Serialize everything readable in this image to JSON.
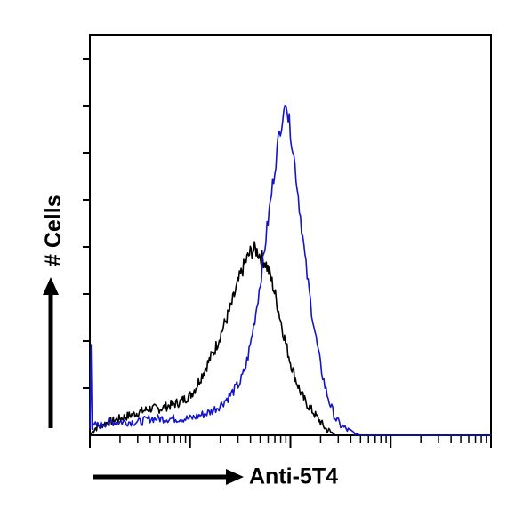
{
  "chart_data": {
    "type": "line",
    "title": "",
    "xlabel": "Anti-5T4",
    "ylabel": "# Cells",
    "x_scale": "log",
    "x_decades": 4,
    "x_range": [
      0,
      4
    ],
    "y_range": [
      0,
      1
    ],
    "grid": false,
    "legend": "none",
    "series": [
      {
        "color": "#000000",
        "x": [
          0.0,
          0.05,
          0.1,
          0.2,
          0.3,
          0.4,
          0.5,
          0.6,
          0.7,
          0.8,
          0.9,
          1.0,
          1.05,
          1.1,
          1.15,
          1.2,
          1.25,
          1.3,
          1.35,
          1.4,
          1.45,
          1.5,
          1.55,
          1.6,
          1.65,
          1.7,
          1.75,
          1.8,
          1.85,
          1.9,
          1.95,
          2.0,
          2.05,
          2.1,
          2.15,
          2.2,
          2.25,
          2.3,
          2.35,
          2.4,
          2.45,
          2.5,
          2.55,
          2.6,
          2.65,
          2.7,
          2.8,
          2.9,
          3.0
        ],
        "y": [
          0.0,
          0.02,
          0.03,
          0.04,
          0.05,
          0.06,
          0.07,
          0.08,
          0.08,
          0.09,
          0.1,
          0.12,
          0.14,
          0.17,
          0.2,
          0.23,
          0.26,
          0.3,
          0.34,
          0.38,
          0.43,
          0.48,
          0.52,
          0.55,
          0.56,
          0.54,
          0.52,
          0.48,
          0.42,
          0.35,
          0.28,
          0.22,
          0.17,
          0.13,
          0.1,
          0.08,
          0.06,
          0.04,
          0.02,
          0.01,
          0.0,
          0.0,
          0.0,
          0.0,
          0.0,
          0.0,
          0.0,
          0.0,
          0.0
        ]
      },
      {
        "color": "#1414c8",
        "x": [
          0.0,
          0.01,
          0.02,
          0.05,
          0.1,
          0.2,
          0.3,
          0.4,
          0.5,
          0.6,
          0.7,
          0.8,
          0.9,
          1.0,
          1.1,
          1.2,
          1.3,
          1.4,
          1.5,
          1.55,
          1.6,
          1.65,
          1.7,
          1.75,
          1.8,
          1.85,
          1.9,
          1.95,
          2.0,
          2.05,
          2.1,
          2.15,
          2.2,
          2.25,
          2.3,
          2.35,
          2.4,
          2.45,
          2.5,
          2.6,
          2.7,
          2.8,
          2.9,
          3.0,
          3.2,
          3.5,
          4.0
        ],
        "y": [
          0.03,
          0.32,
          0.02,
          0.03,
          0.03,
          0.04,
          0.04,
          0.04,
          0.04,
          0.05,
          0.05,
          0.05,
          0.05,
          0.05,
          0.06,
          0.07,
          0.09,
          0.12,
          0.16,
          0.2,
          0.27,
          0.36,
          0.46,
          0.58,
          0.7,
          0.82,
          0.93,
          1.0,
          0.92,
          0.8,
          0.66,
          0.52,
          0.4,
          0.3,
          0.21,
          0.14,
          0.09,
          0.05,
          0.03,
          0.01,
          0.0,
          0.0,
          0.0,
          0.0,
          0.0,
          0.0,
          0.0
        ]
      }
    ]
  }
}
